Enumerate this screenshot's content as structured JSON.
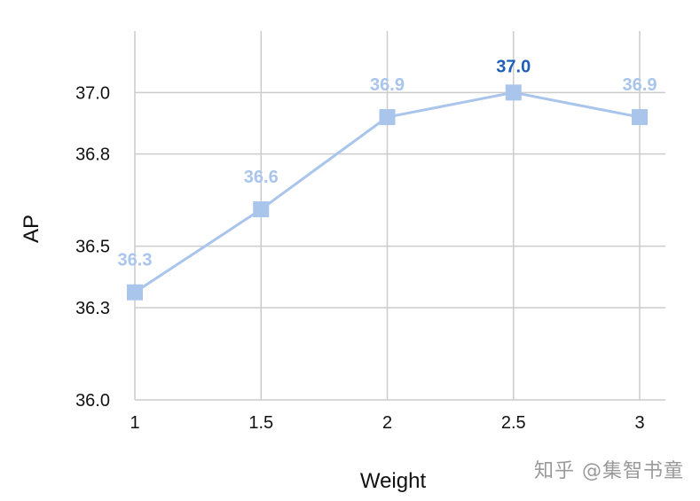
{
  "chart_data": {
    "type": "line",
    "title": "",
    "xlabel": "Weight",
    "ylabel": "AP",
    "x": [
      "1",
      "1.5",
      "2",
      "2.5",
      "3"
    ],
    "series": [
      {
        "values": [
          36.35,
          36.62,
          36.92,
          37.0,
          36.92
        ],
        "labels": [
          "36.3",
          "36.6",
          "36.9",
          "37.0",
          "36.9"
        ]
      }
    ],
    "highlight_index": 3,
    "ylim": [
      36.0,
      37.2
    ],
    "yticks": [
      36.0,
      36.3,
      36.5,
      36.8,
      37.0
    ],
    "ytick_labels": [
      "36.0",
      "36.3",
      "36.5",
      "36.8",
      "37.0"
    ],
    "grid": true,
    "colors": {
      "line": "#a9c5ec",
      "marker": "#a9c5ec",
      "label": "#a9c5ec",
      "highlight_label": "#1f5fb8",
      "grid": "#cccccc"
    }
  },
  "watermark": "知乎 @集智书童"
}
